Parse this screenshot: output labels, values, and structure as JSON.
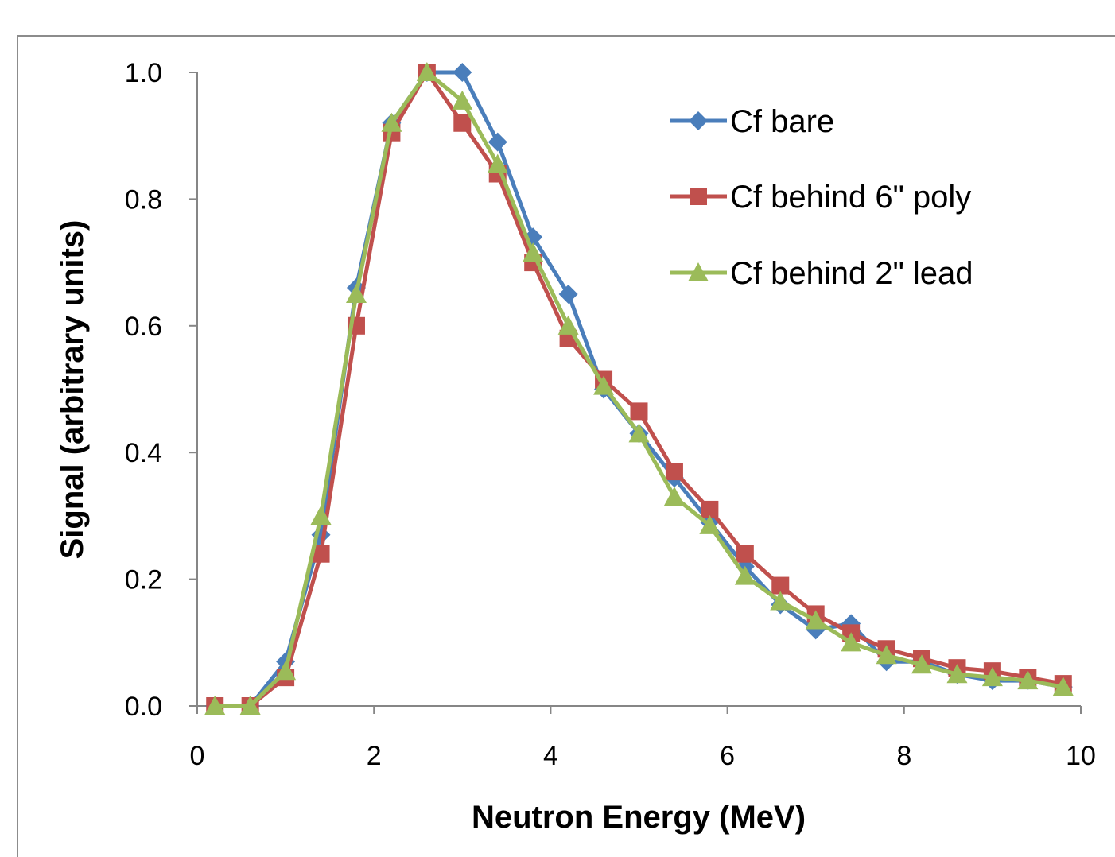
{
  "chart_data": {
    "type": "line",
    "title": "",
    "xlabel": "Neutron Energy (MeV)",
    "ylabel": "Signal (arbitrary units)",
    "xlim": [
      0,
      10
    ],
    "ylim": [
      0,
      1.0
    ],
    "xticks": [
      0,
      2,
      4,
      6,
      8,
      10
    ],
    "xtick_labels": [
      "0",
      "2",
      "4",
      "6",
      "8",
      "10"
    ],
    "yticks": [
      0,
      0.2,
      0.4,
      0.6,
      0.8,
      1.0
    ],
    "ytick_labels": [
      "0.0",
      "0.2",
      "0.4",
      "0.6",
      "0.8",
      "1.0"
    ],
    "grid": false,
    "legend_position": "top-right",
    "x": [
      0.2,
      0.6,
      1.0,
      1.4,
      1.8,
      2.2,
      2.6,
      3.0,
      3.4,
      3.8,
      4.2,
      4.6,
      5.0,
      5.4,
      5.8,
      6.2,
      6.6,
      7.0,
      7.4,
      7.8,
      8.2,
      8.6,
      9.0,
      9.4,
      9.8
    ],
    "series": [
      {
        "name": "Cf bare",
        "color": "#4a7ebb",
        "marker": "diamond",
        "values": [
          0.0,
          0.0,
          0.07,
          0.27,
          0.66,
          0.92,
          1.0,
          1.0,
          0.89,
          0.74,
          0.65,
          0.5,
          0.43,
          0.36,
          0.29,
          0.22,
          0.16,
          0.12,
          0.13,
          0.07,
          0.07,
          0.05,
          0.04,
          0.04,
          0.03
        ]
      },
      {
        "name": "Cf behind 6\" poly",
        "color": "#c0504d",
        "marker": "square",
        "values": [
          0.0,
          0.0,
          0.045,
          0.24,
          0.6,
          0.905,
          1.0,
          0.92,
          0.84,
          0.7,
          0.58,
          0.515,
          0.465,
          0.37,
          0.31,
          0.24,
          0.19,
          0.145,
          0.115,
          0.09,
          0.075,
          0.06,
          0.055,
          0.045,
          0.035
        ]
      },
      {
        "name": "Cf behind 2\" lead",
        "color": "#9bbb59",
        "marker": "triangle",
        "values": [
          0.0,
          0.0,
          0.055,
          0.3,
          0.65,
          0.92,
          1.0,
          0.955,
          0.855,
          0.715,
          0.6,
          0.505,
          0.43,
          0.33,
          0.285,
          0.205,
          0.165,
          0.135,
          0.1,
          0.08,
          0.065,
          0.05,
          0.045,
          0.04,
          0.03
        ]
      }
    ]
  }
}
